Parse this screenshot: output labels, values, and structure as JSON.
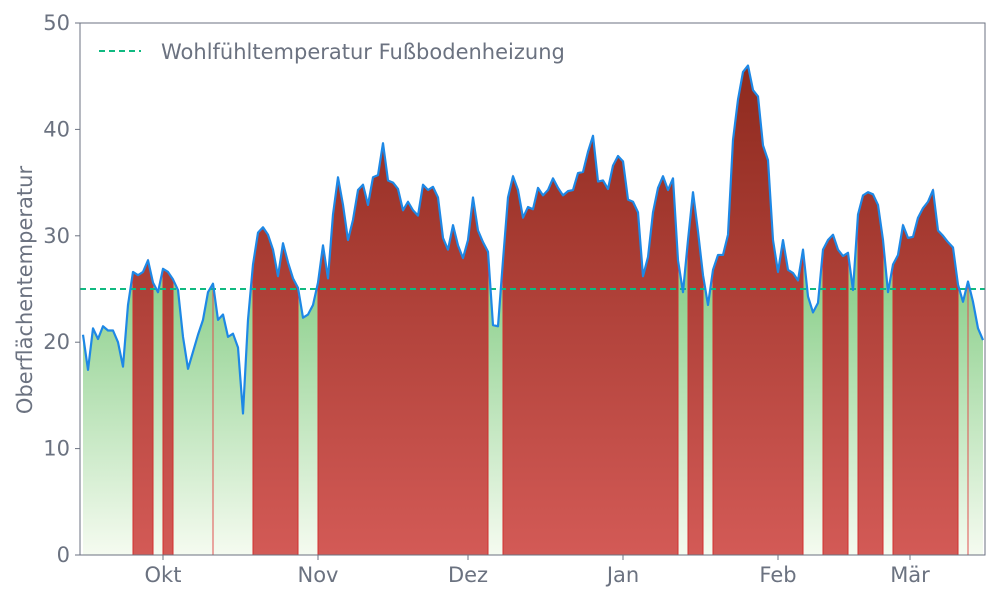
{
  "chart_data": {
    "type": "area",
    "title": "",
    "xlabel": "",
    "ylabel": "Oberflächentemperatur",
    "ylim": [
      0,
      50
    ],
    "yticks": [
      0,
      10,
      20,
      30,
      40,
      50
    ],
    "xticks": [
      {
        "date": "10-01",
        "label": "Okt"
      },
      {
        "date": "11-01",
        "label": "Nov"
      },
      {
        "date": "12-01",
        "label": "Dez"
      },
      {
        "date": "01-01",
        "label": "Jan"
      },
      {
        "date": "02-01",
        "label": "Feb"
      },
      {
        "date": "03-01",
        "label": "Mär"
      }
    ],
    "grid": false,
    "legend": {
      "placement": "top-left",
      "entries": [
        "Wohlfühltemperatur Fußbodenheizung"
      ]
    },
    "threshold": {
      "name": "Wohlfühltemperatur Fußbodenheizung",
      "value": 25
    },
    "colors": {
      "line": "#1e88e5",
      "threshold": "#10b981",
      "above_top": "#8e2a1e",
      "above_bottom": "#d35a56",
      "below_top": "#8fd18f",
      "below_bottom": "#f5fbf0",
      "text": "#6b7280",
      "axis": "#6b7280"
    },
    "x": [
      "09-15",
      "09-16",
      "09-17",
      "09-18",
      "09-19",
      "09-20",
      "09-21",
      "09-22",
      "09-23",
      "09-24",
      "09-25",
      "09-26",
      "09-27",
      "09-28",
      "09-29",
      "09-30",
      "10-01",
      "10-02",
      "10-03",
      "10-04",
      "10-05",
      "10-06",
      "10-07",
      "10-08",
      "10-09",
      "10-10",
      "10-11",
      "10-12",
      "10-13",
      "10-14",
      "10-15",
      "10-16",
      "10-17",
      "10-18",
      "10-19",
      "10-20",
      "10-21",
      "10-22",
      "10-23",
      "10-24",
      "10-25",
      "10-26",
      "10-27",
      "10-28",
      "10-29",
      "10-30",
      "10-31",
      "11-01",
      "11-02",
      "11-03",
      "11-04",
      "11-05",
      "11-06",
      "11-07",
      "11-08",
      "11-09",
      "11-10",
      "11-11",
      "11-12",
      "11-13",
      "11-14",
      "11-15",
      "11-16",
      "11-17",
      "11-18",
      "11-19",
      "11-20",
      "11-21",
      "11-22",
      "11-23",
      "11-24",
      "11-25",
      "11-26",
      "11-27",
      "11-28",
      "11-29",
      "11-30",
      "12-01",
      "12-02",
      "12-03",
      "12-04",
      "12-05",
      "12-06",
      "12-07",
      "12-08",
      "12-09",
      "12-10",
      "12-11",
      "12-12",
      "12-13",
      "12-14",
      "12-15",
      "12-16",
      "12-17",
      "12-18",
      "12-19",
      "12-20",
      "12-21",
      "12-22",
      "12-23",
      "12-24",
      "12-25",
      "12-26",
      "12-27",
      "12-28",
      "12-29",
      "12-30",
      "12-31",
      "01-01",
      "01-02",
      "01-03",
      "01-04",
      "01-05",
      "01-06",
      "01-07",
      "01-08",
      "01-09",
      "01-10",
      "01-11",
      "01-12",
      "01-13",
      "01-14",
      "01-15",
      "01-16",
      "01-17",
      "01-18",
      "01-19",
      "01-20",
      "01-21",
      "01-22",
      "01-23",
      "01-24",
      "01-25",
      "01-26",
      "01-27",
      "01-28",
      "01-29",
      "01-30",
      "01-31",
      "02-01",
      "02-02",
      "02-03",
      "02-04",
      "02-05",
      "02-06",
      "02-07",
      "02-08",
      "02-09",
      "02-10",
      "02-11",
      "02-12",
      "02-13",
      "02-14",
      "02-15",
      "02-16",
      "02-17",
      "02-18",
      "02-19",
      "02-20",
      "02-21",
      "02-22",
      "02-23",
      "02-24",
      "02-25",
      "02-26",
      "02-27",
      "02-28",
      "03-01",
      "03-02",
      "03-03",
      "03-04",
      "03-05",
      "03-06",
      "03-07",
      "03-08",
      "03-09",
      "03-10",
      "03-11",
      "03-12",
      "03-13",
      "03-14"
    ],
    "series": [
      {
        "values": [
          20.7,
          17.4,
          21.3,
          20.3,
          21.5,
          21.1,
          21.1,
          20.0,
          17.7,
          23.5,
          26.6,
          26.3,
          26.6,
          27.7,
          25.6,
          24.7,
          26.9,
          26.6,
          25.9,
          24.9,
          20.5,
          17.5,
          19.1,
          20.7,
          22.1,
          24.7,
          25.5,
          22.1,
          22.6,
          20.5,
          20.8,
          19.5,
          13.3,
          22.1,
          27.3,
          30.3,
          30.8,
          30.1,
          28.7,
          26.2,
          29.3,
          27.5,
          26.0,
          25.1,
          22.3,
          22.6,
          23.5,
          25.6,
          29.1,
          26.0,
          32.0,
          35.5,
          32.9,
          29.6,
          31.5,
          34.3,
          34.8,
          32.9,
          35.5,
          35.7,
          38.7,
          35.2,
          35.0,
          34.4,
          32.4,
          33.2,
          32.4,
          31.9,
          34.8,
          34.3,
          34.6,
          33.6,
          29.8,
          28.7,
          31.0,
          29.1,
          27.9,
          29.6,
          33.6,
          30.5,
          29.4,
          28.5,
          21.6,
          21.5,
          27.7,
          33.6,
          35.6,
          34.3,
          31.7,
          32.7,
          32.5,
          34.5,
          33.8,
          34.3,
          35.4,
          34.5,
          33.8,
          34.2,
          34.3,
          35.9,
          36.0,
          37.9,
          39.4,
          35.1,
          35.2,
          34.4,
          36.6,
          37.5,
          37.0,
          33.4,
          33.2,
          32.2,
          26.2,
          28.0,
          32.2,
          34.5,
          35.6,
          34.3,
          35.4,
          27.7,
          24.7,
          29.6,
          34.1,
          30.4,
          26.3,
          23.5,
          26.8,
          28.2,
          28.2,
          30.1,
          39.0,
          42.8,
          45.4,
          46.0,
          43.7,
          43.1,
          38.5,
          37.1,
          29.6,
          26.6,
          29.6,
          26.8,
          26.5,
          25.8,
          28.7,
          24.3,
          22.8,
          23.7,
          28.7,
          29.6,
          30.1,
          28.7,
          28.1,
          28.4,
          24.9,
          32.0,
          33.8,
          34.1,
          33.9,
          32.9,
          29.6,
          24.7,
          27.3,
          28.2,
          31.0,
          29.8,
          29.9,
          31.7,
          32.6,
          33.2,
          34.3,
          30.5,
          30.0,
          29.4,
          28.9,
          25.4,
          23.8,
          25.7,
          23.8,
          21.3,
          20.2
        ]
      }
    ]
  }
}
